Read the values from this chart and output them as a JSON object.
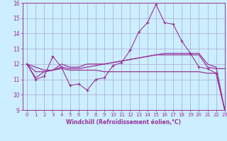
{
  "xlabel": "Windchill (Refroidissement éolien,°C)",
  "background_color": "#cceeff",
  "grid_color": "#aaaacc",
  "line_color": "#993399",
  "x": [
    0,
    1,
    2,
    3,
    4,
    5,
    6,
    7,
    8,
    9,
    10,
    11,
    12,
    13,
    14,
    15,
    16,
    17,
    18,
    19,
    20,
    21,
    22,
    23
  ],
  "line1": [
    12.0,
    11.0,
    11.2,
    12.5,
    11.8,
    10.6,
    10.7,
    10.3,
    11.0,
    11.1,
    11.9,
    12.1,
    12.9,
    14.1,
    14.7,
    15.9,
    14.7,
    14.6,
    13.5,
    12.7,
    11.8,
    11.7,
    11.4,
    9.0
  ],
  "line2": [
    12.0,
    11.1,
    11.5,
    11.6,
    11.8,
    11.7,
    11.7,
    11.8,
    11.9,
    12.0,
    12.1,
    12.2,
    12.3,
    12.4,
    12.5,
    12.6,
    12.6,
    12.6,
    12.6,
    12.6,
    12.6,
    11.8,
    11.7,
    11.7
  ],
  "line3": [
    12.0,
    11.8,
    11.6,
    11.6,
    11.7,
    11.6,
    11.6,
    11.6,
    11.6,
    11.5,
    11.5,
    11.5,
    11.5,
    11.5,
    11.5,
    11.5,
    11.5,
    11.5,
    11.5,
    11.5,
    11.5,
    11.4,
    11.4,
    9.0
  ],
  "line4": [
    12.0,
    11.5,
    11.5,
    11.6,
    12.0,
    11.8,
    11.8,
    12.0,
    12.0,
    12.0,
    12.1,
    12.2,
    12.3,
    12.4,
    12.5,
    12.6,
    12.7,
    12.7,
    12.7,
    12.7,
    12.7,
    12.0,
    11.8,
    9.0
  ],
  "ylim": [
    9,
    16
  ],
  "yticks": [
    9,
    10,
    11,
    12,
    13,
    14,
    15,
    16
  ],
  "xlim": [
    -0.5,
    23
  ]
}
